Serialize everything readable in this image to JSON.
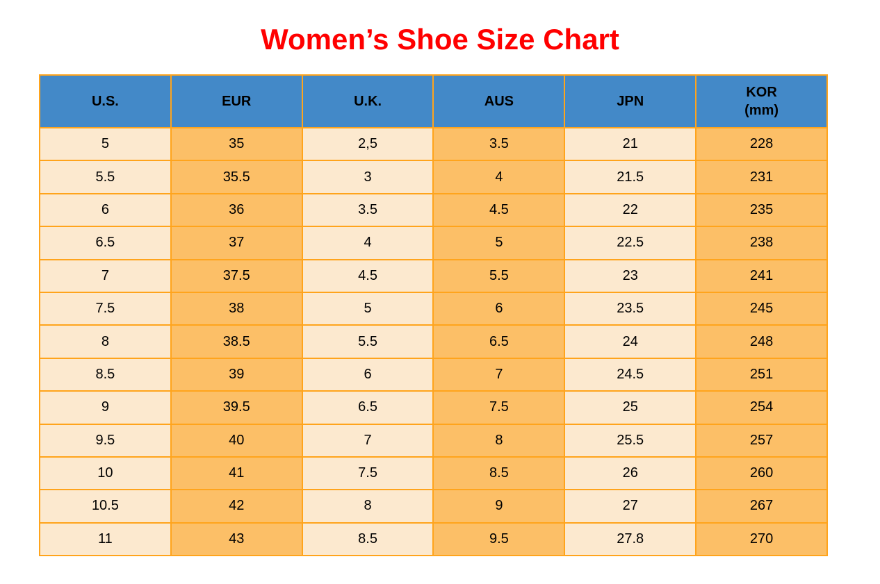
{
  "title": "Women’s Shoe Size Chart",
  "colors": {
    "title": "#FF0000",
    "header_bg": "#4389C8",
    "header_text": "#000000",
    "cell_cream": "#FCE9CF",
    "cell_orange": "#FCBF67",
    "border": "#FFA41C",
    "cell_text": "#000000"
  },
  "table": {
    "headers": [
      {
        "id": "us",
        "label": "U.S."
      },
      {
        "id": "eur",
        "label": "EUR"
      },
      {
        "id": "uk",
        "label": "U.K."
      },
      {
        "id": "aus",
        "label": "AUS"
      },
      {
        "id": "jpn",
        "label": "JPN"
      },
      {
        "id": "kor",
        "label": "KOR",
        "sublabel": "(mm)"
      }
    ]
  },
  "chart_data": {
    "type": "table",
    "title": "Women’s Shoe Size Chart",
    "columns": [
      "U.S.",
      "EUR",
      "U.K.",
      "AUS",
      "JPN",
      "KOR (mm)"
    ],
    "rows": [
      [
        "5",
        "35",
        "2,5",
        "3.5",
        "21",
        "228"
      ],
      [
        "5.5",
        "35.5",
        "3",
        "4",
        "21.5",
        "231"
      ],
      [
        "6",
        "36",
        "3.5",
        "4.5",
        "22",
        "235"
      ],
      [
        "6.5",
        "37",
        "4",
        "5",
        "22.5",
        "238"
      ],
      [
        "7",
        "37.5",
        "4.5",
        "5.5",
        "23",
        "241"
      ],
      [
        "7.5",
        "38",
        "5",
        "6",
        "23.5",
        "245"
      ],
      [
        "8",
        "38.5",
        "5.5",
        "6.5",
        "24",
        "248"
      ],
      [
        "8.5",
        "39",
        "6",
        "7",
        "24.5",
        "251"
      ],
      [
        "9",
        "39.5",
        "6.5",
        "7.5",
        "25",
        "254"
      ],
      [
        "9.5",
        "40",
        "7",
        "8",
        "25.5",
        "257"
      ],
      [
        "10",
        "41",
        "7.5",
        "8.5",
        "26",
        "260"
      ],
      [
        "10.5",
        "42",
        "8",
        "9",
        "27",
        "267"
      ],
      [
        "11",
        "43",
        "8.5",
        "9.5",
        "27.8",
        "270"
      ]
    ]
  }
}
